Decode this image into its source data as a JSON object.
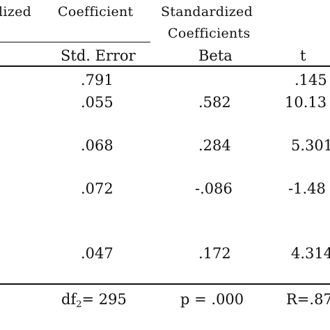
{
  "header": {
    "col_unstd_fragment": "lized",
    "col_coefficient": "Coefficient",
    "col_standardized_line1": "Standardized",
    "col_standardized_line2": "Coefficients"
  },
  "subheader": {
    "std_error": "Std. Error",
    "beta": "Beta",
    "t": "t"
  },
  "rows": [
    {
      "std_error": ".791",
      "beta": "",
      "t": ".145"
    },
    {
      "std_error": ".055",
      "beta": ".582",
      "t": "10.13"
    },
    {
      "std_error": ".068",
      "beta": ".284",
      "t": "5.301"
    },
    {
      "std_error": ".072",
      "beta": "-.086",
      "t": "-1.48"
    },
    {
      "std_error": ".047",
      "beta": ".172",
      "t": "4.314"
    }
  ],
  "footer": {
    "df_prefix": "df",
    "df_sub": "2",
    "df_value": "= 295",
    "p": "p = .000",
    "r": "R=.87"
  }
}
